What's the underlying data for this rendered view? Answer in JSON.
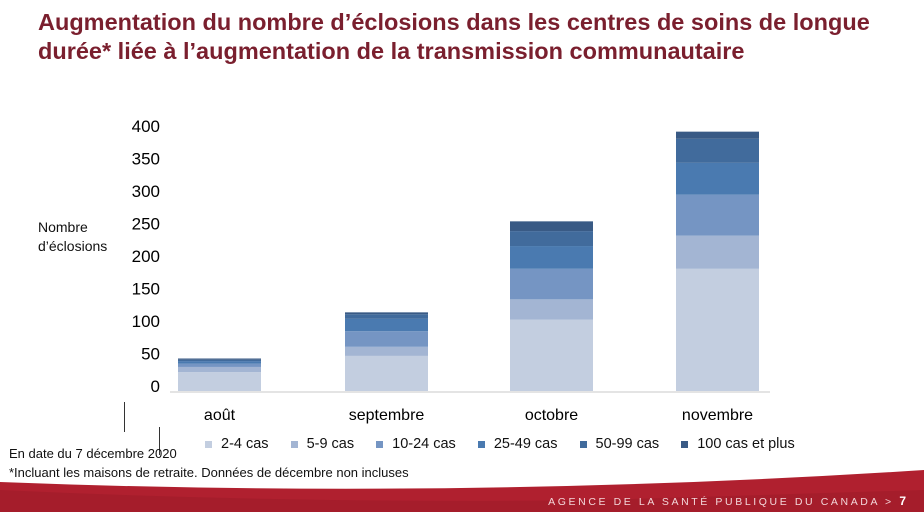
{
  "title": "Augmentation du nombre d’éclosions dans les centres de soins de longue durée* liée à l’augmentation de la transmission communautaire",
  "y_axis_label_line1": "Nombre",
  "y_axis_label_line2": "d’éclosions",
  "notes": {
    "date": "En date du 7 décembre 2020",
    "footnote": "*Incluant les maisons de retraite. Données de décembre non incluses"
  },
  "footer": {
    "agency": "AGENCE DE LA SANTÉ PUBLIQUE DU CANADA",
    "separator": ">",
    "page": "7",
    "color": "#b0202f"
  },
  "chart_data": {
    "type": "bar",
    "stacked": true,
    "title": "",
    "xlabel": "",
    "ylabel": "Nombre d’éclosions",
    "categories": [
      "août",
      "septembre",
      "octobre",
      "novembre"
    ],
    "ylim": [
      0,
      400
    ],
    "yticks": [
      0,
      50,
      100,
      150,
      200,
      250,
      300,
      350,
      400
    ],
    "ytick_labels": [
      "0",
      "50",
      "100",
      "150",
      "200",
      "250",
      "300",
      "350",
      "400"
    ],
    "grid": false,
    "legend_position": "bottom",
    "series": [
      {
        "name": "2-4 cas",
        "color": "#c3cee0",
        "values": [
          29,
          54,
          110,
          188
        ]
      },
      {
        "name": "5-9 cas",
        "color": "#a3b5d3",
        "values": [
          8,
          14,
          31,
          51
        ]
      },
      {
        "name": "10-24 cas",
        "color": "#7595c3",
        "values": [
          5,
          24,
          47,
          63
        ]
      },
      {
        "name": "25-49 cas",
        "color": "#4a7ab0",
        "values": [
          4,
          19,
          35,
          49
        ]
      },
      {
        "name": "50-99 cas",
        "color": "#416b9c",
        "values": [
          2,
          7,
          23,
          37
        ]
      },
      {
        "name": "100 cas et plus",
        "color": "#395a85",
        "values": [
          2,
          3,
          15,
          11
        ]
      }
    ]
  }
}
